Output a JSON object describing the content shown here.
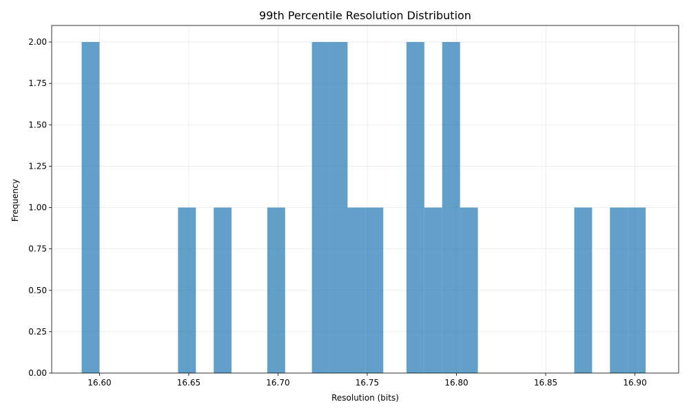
{
  "chart_data": {
    "type": "bar",
    "title": "99th Percentile Resolution Distribution",
    "xlabel": "Resolution (bits)",
    "ylabel": "Frequency",
    "xlim": [
      16.5732,
      16.9245
    ],
    "ylim": [
      0,
      2.1
    ],
    "grid": true,
    "bar_color": "#1f77b4",
    "bar_opacity": 0.7,
    "bin_width": 0.01,
    "x_ticks": [
      "16.60",
      "16.65",
      "16.70",
      "16.75",
      "16.80",
      "16.85",
      "16.90"
    ],
    "y_ticks": [
      "0.00",
      "0.25",
      "0.50",
      "0.75",
      "1.00",
      "1.25",
      "1.50",
      "1.75",
      "2.00"
    ],
    "bins": [
      {
        "x0": 16.59,
        "x1": 16.6,
        "count": 2
      },
      {
        "x0": 16.644,
        "x1": 16.654,
        "count": 1
      },
      {
        "x0": 16.664,
        "x1": 16.674,
        "count": 1
      },
      {
        "x0": 16.694,
        "x1": 16.704,
        "count": 1
      },
      {
        "x0": 16.719,
        "x1": 16.729,
        "count": 2
      },
      {
        "x0": 16.729,
        "x1": 16.739,
        "count": 2
      },
      {
        "x0": 16.739,
        "x1": 16.749,
        "count": 1
      },
      {
        "x0": 16.749,
        "x1": 16.759,
        "count": 1
      },
      {
        "x0": 16.772,
        "x1": 16.782,
        "count": 2
      },
      {
        "x0": 16.782,
        "x1": 16.792,
        "count": 1
      },
      {
        "x0": 16.792,
        "x1": 16.802,
        "count": 2
      },
      {
        "x0": 16.802,
        "x1": 16.812,
        "count": 1
      },
      {
        "x0": 16.866,
        "x1": 16.876,
        "count": 1
      },
      {
        "x0": 16.886,
        "x1": 16.896,
        "count": 1
      },
      {
        "x0": 16.896,
        "x1": 16.906,
        "count": 1
      }
    ]
  }
}
